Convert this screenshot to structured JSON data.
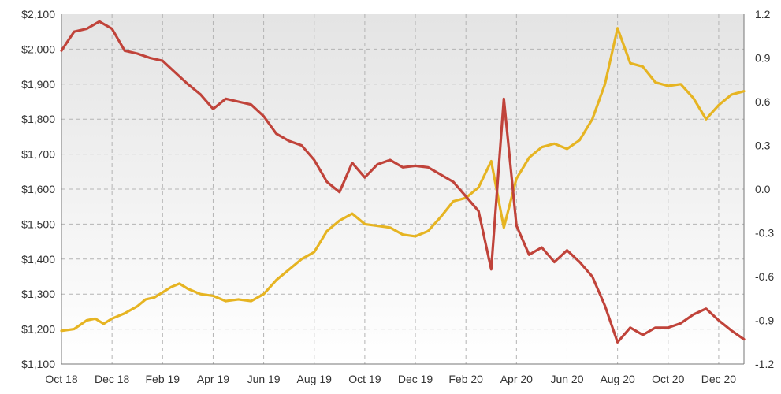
{
  "chart_data": {
    "type": "line",
    "title": "",
    "xlabel": "",
    "ylabel_left": "",
    "ylabel_right": "",
    "x_ticks": [
      "Oct 18",
      "Dec 18",
      "Feb 19",
      "Apr 19",
      "Jun 19",
      "Aug 19",
      "Oct 19",
      "Dec 19",
      "Feb 20",
      "Apr 20",
      "Jun 20",
      "Aug 20",
      "Oct 20",
      "Dec 20"
    ],
    "y_left": {
      "ylim": [
        1100,
        2100
      ],
      "ticks": [
        "$1,100",
        "$1,200",
        "$1,300",
        "$1,400",
        "$1,500",
        "$1,600",
        "$1,700",
        "$1,800",
        "$1,900",
        "$2,000",
        "$2,100"
      ]
    },
    "y_right": {
      "ylim": [
        -1.2,
        1.2
      ],
      "ticks": [
        "-1.2",
        "-0.9",
        "-0.6",
        "-0.3",
        "0.0",
        "0.3",
        "0.6",
        "0.9",
        "1.2"
      ]
    },
    "grid": true,
    "legend": "none",
    "background": "vertical gradient, light gray to white",
    "series": [
      {
        "axis": "left",
        "color": "#E6B422",
        "points": [
          [
            "Oct 18",
            1195
          ],
          [
            "Oct 18",
            1200
          ],
          [
            "Nov 18",
            1225
          ],
          [
            "Nov 18",
            1230
          ],
          [
            "Nov 18",
            1215
          ],
          [
            "Dec 18",
            1230
          ],
          [
            "Dec 18",
            1245
          ],
          [
            "Jan 19",
            1265
          ],
          [
            "Jan 19",
            1285
          ],
          [
            "Jan 19",
            1290
          ],
          [
            "Feb 19",
            1305
          ],
          [
            "Feb 19",
            1320
          ],
          [
            "Feb 19",
            1330
          ],
          [
            "Mar 19",
            1315
          ],
          [
            "Mar 19",
            1300
          ],
          [
            "Apr 19",
            1295
          ],
          [
            "Apr 19",
            1280
          ],
          [
            "May 19",
            1285
          ],
          [
            "May 19",
            1280
          ],
          [
            "Jun 19",
            1300
          ],
          [
            "Jun 19",
            1340
          ],
          [
            "Jul 19",
            1370
          ],
          [
            "Jul 19",
            1400
          ],
          [
            "Aug 19",
            1420
          ],
          [
            "Aug 19",
            1480
          ],
          [
            "Sep 19",
            1510
          ],
          [
            "Sep 19",
            1530
          ],
          [
            "Oct 19",
            1500
          ],
          [
            "Oct 19",
            1495
          ],
          [
            "Nov 19",
            1490
          ],
          [
            "Nov 19",
            1470
          ],
          [
            "Dec 19",
            1465
          ],
          [
            "Dec 19",
            1480
          ],
          [
            "Jan 20",
            1520
          ],
          [
            "Jan 20",
            1565
          ],
          [
            "Feb 20",
            1575
          ],
          [
            "Feb 20",
            1605
          ],
          [
            "Mar 20",
            1680
          ],
          [
            "Mar 20",
            1490
          ],
          [
            "Apr 20",
            1630
          ],
          [
            "Apr 20",
            1690
          ],
          [
            "May 20",
            1720
          ],
          [
            "May 20",
            1730
          ],
          [
            "Jun 20",
            1715
          ],
          [
            "Jun 20",
            1740
          ],
          [
            "Jul 20",
            1800
          ],
          [
            "Jul 20",
            1900
          ],
          [
            "Aug 20",
            2060
          ],
          [
            "Aug 20",
            1960
          ],
          [
            "Sep 20",
            1950
          ],
          [
            "Sep 20",
            1905
          ],
          [
            "Oct 20",
            1895
          ],
          [
            "Oct 20",
            1900
          ],
          [
            "Nov 20",
            1860
          ],
          [
            "Nov 20",
            1800
          ],
          [
            "Dec 20",
            1840
          ],
          [
            "Dec 20",
            1870
          ],
          [
            "Jan 21",
            1880
          ]
        ]
      },
      {
        "axis": "right",
        "color": "#C0433A",
        "points": [
          [
            "Oct 18",
            0.95
          ],
          [
            "Oct 18",
            1.08
          ],
          [
            "Nov 18",
            1.1
          ],
          [
            "Nov 18",
            1.15
          ],
          [
            "Dec 18",
            1.1
          ],
          [
            "Dec 18",
            0.95
          ],
          [
            "Jan 19",
            0.93
          ],
          [
            "Jan 19",
            0.9
          ],
          [
            "Feb 19",
            0.88
          ],
          [
            "Feb 19",
            0.8
          ],
          [
            "Mar 19",
            0.72
          ],
          [
            "Mar 19",
            0.65
          ],
          [
            "Apr 19",
            0.55
          ],
          [
            "Apr 19",
            0.62
          ],
          [
            "May 19",
            0.6
          ],
          [
            "May 19",
            0.58
          ],
          [
            "Jun 19",
            0.5
          ],
          [
            "Jun 19",
            0.38
          ],
          [
            "Jul 19",
            0.33
          ],
          [
            "Jul 19",
            0.3
          ],
          [
            "Aug 19",
            0.2
          ],
          [
            "Aug 19",
            0.05
          ],
          [
            "Sep 19",
            -0.02
          ],
          [
            "Sep 19",
            0.18
          ],
          [
            "Oct 19",
            0.08
          ],
          [
            "Oct 19",
            0.17
          ],
          [
            "Nov 19",
            0.2
          ],
          [
            "Nov 19",
            0.15
          ],
          [
            "Dec 19",
            0.16
          ],
          [
            "Dec 19",
            0.15
          ],
          [
            "Jan 20",
            0.1
          ],
          [
            "Jan 20",
            0.05
          ],
          [
            "Feb 20",
            -0.05
          ],
          [
            "Feb 20",
            -0.15
          ],
          [
            "Mar 20",
            -0.55
          ],
          [
            "Mar 20",
            0.62
          ],
          [
            "Apr 20",
            -0.25
          ],
          [
            "Apr 20",
            -0.45
          ],
          [
            "May 20",
            -0.4
          ],
          [
            "May 20",
            -0.5
          ],
          [
            "Jun 20",
            -0.42
          ],
          [
            "Jun 20",
            -0.5
          ],
          [
            "Jul 20",
            -0.6
          ],
          [
            "Jul 20",
            -0.8
          ],
          [
            "Aug 20",
            -1.05
          ],
          [
            "Aug 20",
            -0.95
          ],
          [
            "Sep 20",
            -1.0
          ],
          [
            "Sep 20",
            -0.95
          ],
          [
            "Oct 20",
            -0.95
          ],
          [
            "Oct 20",
            -0.92
          ],
          [
            "Nov 20",
            -0.86
          ],
          [
            "Nov 20",
            -0.82
          ],
          [
            "Dec 20",
            -0.9
          ],
          [
            "Dec 20",
            -0.97
          ],
          [
            "Jan 21",
            -1.03
          ]
        ]
      }
    ]
  }
}
